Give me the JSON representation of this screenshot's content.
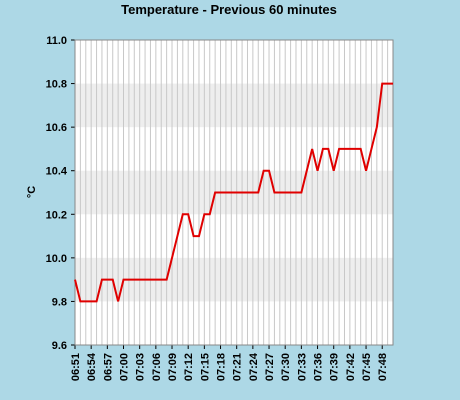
{
  "chart_data": {
    "type": "line",
    "title": "Temperature - Previous 60 minutes",
    "y_label": "°C",
    "categories": [
      "06:51",
      null,
      null,
      "06:54",
      null,
      null,
      "06:57",
      null,
      null,
      "07:00",
      null,
      null,
      "07:03",
      null,
      null,
      "07:06",
      null,
      null,
      "07:09",
      null,
      null,
      "07:12",
      null,
      null,
      "07:15",
      null,
      null,
      "07:18",
      null,
      null,
      "07:21",
      null,
      null,
      "07:24",
      null,
      null,
      "07:27",
      null,
      null,
      "07:30",
      null,
      null,
      "07:33",
      null,
      null,
      "07:36",
      null,
      null,
      "07:39",
      null,
      null,
      "07:42",
      null,
      null,
      "07:45",
      null,
      null,
      "07:48",
      null,
      null
    ],
    "values": [
      9.9,
      9.8,
      9.8,
      9.8,
      9.8,
      9.9,
      9.9,
      9.9,
      9.8,
      9.9,
      9.9,
      9.9,
      9.9,
      9.9,
      9.9,
      9.9,
      9.9,
      9.9,
      10.0,
      10.1,
      10.2,
      10.2,
      10.1,
      10.1,
      10.2,
      10.2,
      10.3,
      10.3,
      10.3,
      10.3,
      10.3,
      10.3,
      10.3,
      10.3,
      10.3,
      10.4,
      10.4,
      10.3,
      10.3,
      10.3,
      10.3,
      10.3,
      10.3,
      10.4,
      10.5,
      10.4,
      10.5,
      10.5,
      10.4,
      10.5,
      10.5,
      10.5,
      10.5,
      10.5,
      10.4,
      10.5,
      10.6,
      10.8,
      10.8,
      10.8
    ],
    "color": "#e00000",
    "ylim": [
      9.6,
      11.0
    ],
    "yticks": [
      9.6,
      9.8,
      {
        "value": 10.0,
        "label": "10.0"
      },
      10.2,
      10.4,
      10.6,
      10.8,
      {
        "value": 11.0,
        "label": "11.0"
      }
    ],
    "banded": true,
    "grid": true
  }
}
